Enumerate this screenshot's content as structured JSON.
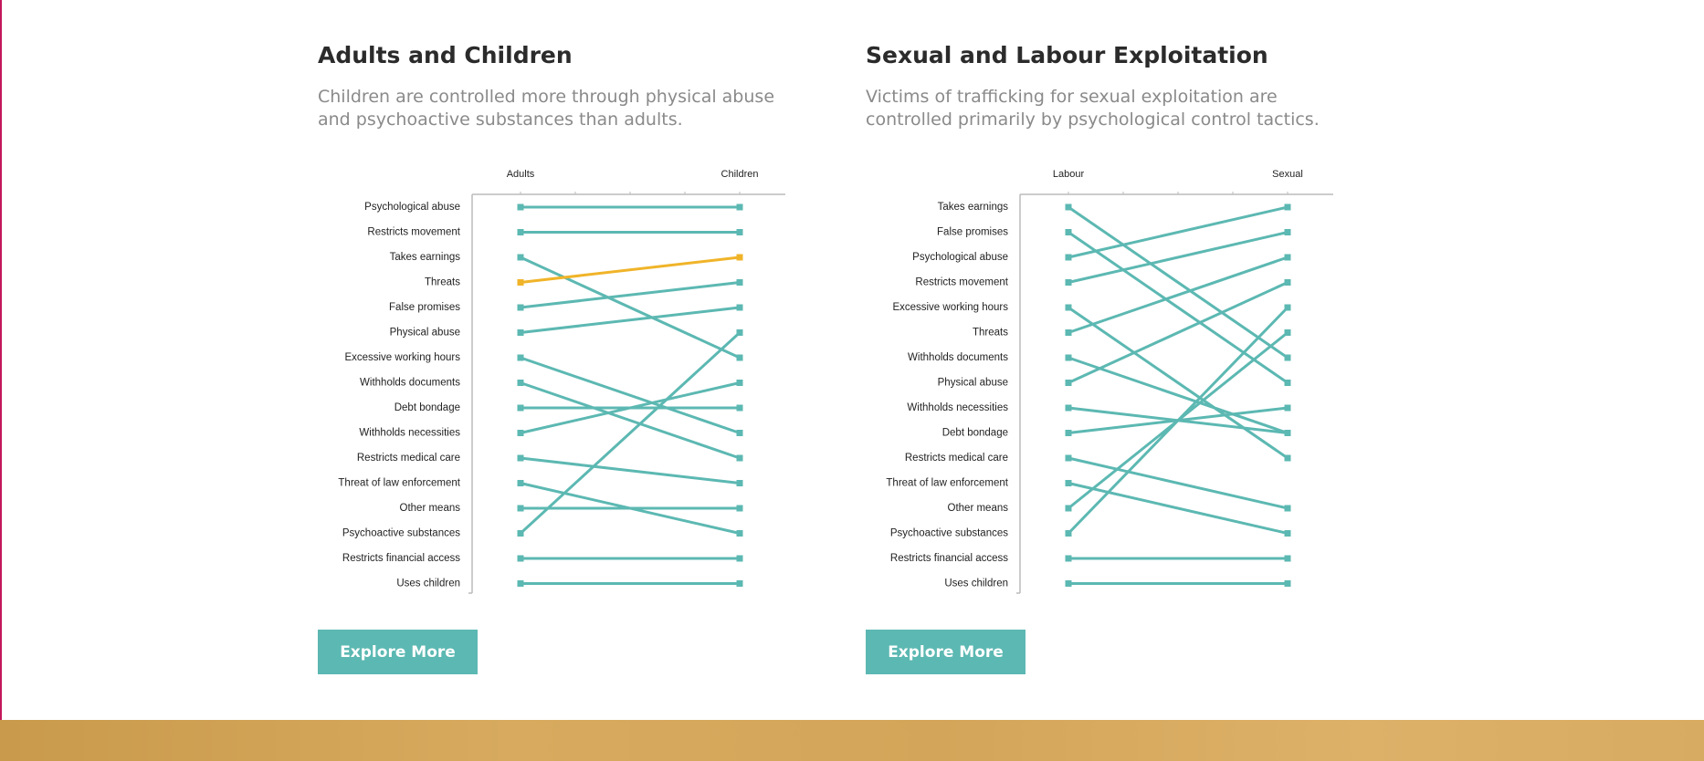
{
  "colors": {
    "line": "#5cb8b2",
    "highlight": "#f0b429",
    "button": "#5cb8b2",
    "footer": "#d3a55a"
  },
  "panels": [
    {
      "title": "Adults and Children",
      "description": "Children are controlled more through physical abuse and psychoactive substances than adults.",
      "button_label": "Explore More"
    },
    {
      "title": "Sexual and Labour Exploitation",
      "description": "Victims of trafficking for sexual exploitation are controlled primarily by psychological control tactics.",
      "button_label": "Explore More"
    }
  ],
  "chart_data": [
    {
      "type": "line",
      "subtype": "slope",
      "axes": [
        "Adults",
        "Children"
      ],
      "categories": [
        "Psychological abuse",
        "Restricts movement",
        "Takes earnings",
        "Threats",
        "False promises",
        "Physical abuse",
        "Excessive working hours",
        "Withholds documents",
        "Debt bondage",
        "Withholds necessities",
        "Restricts medical care",
        "Threat of law enforcement",
        "Other means",
        "Psychoactive substances",
        "Restricts financial access",
        "Uses children"
      ],
      "series": [
        {
          "name": "Adults",
          "ranks": [
            1,
            2,
            3,
            4,
            5,
            6,
            7,
            8,
            9,
            10,
            11,
            12,
            13,
            14,
            15,
            16
          ]
        },
        {
          "name": "Children",
          "ranks": [
            1,
            2,
            7,
            3,
            4,
            5,
            10,
            11,
            9,
            8,
            12,
            14,
            13,
            6,
            15,
            16
          ]
        }
      ],
      "highlight": "Threats"
    },
    {
      "type": "line",
      "subtype": "slope",
      "axes": [
        "Labour",
        "Sexual"
      ],
      "categories": [
        "Takes earnings",
        "False promises",
        "Psychological abuse",
        "Restricts movement",
        "Excessive working hours",
        "Threats",
        "Withholds documents",
        "Physical abuse",
        "Withholds necessities",
        "Debt bondage",
        "Restricts medical care",
        "Threat of law enforcement",
        "Other means",
        "Psychoactive substances",
        "Restricts financial access",
        "Uses children"
      ],
      "series": [
        {
          "name": "Labour",
          "ranks": [
            1,
            2,
            3,
            4,
            5,
            6,
            7,
            8,
            9,
            10,
            11,
            12,
            13,
            14,
            15,
            16
          ]
        },
        {
          "name": "Sexual",
          "ranks": [
            7,
            8,
            1,
            2,
            11,
            3,
            10,
            4,
            10,
            9,
            13,
            14,
            6,
            5,
            15,
            16
          ]
        }
      ],
      "highlight": null
    }
  ],
  "explore_label": "Explore More"
}
